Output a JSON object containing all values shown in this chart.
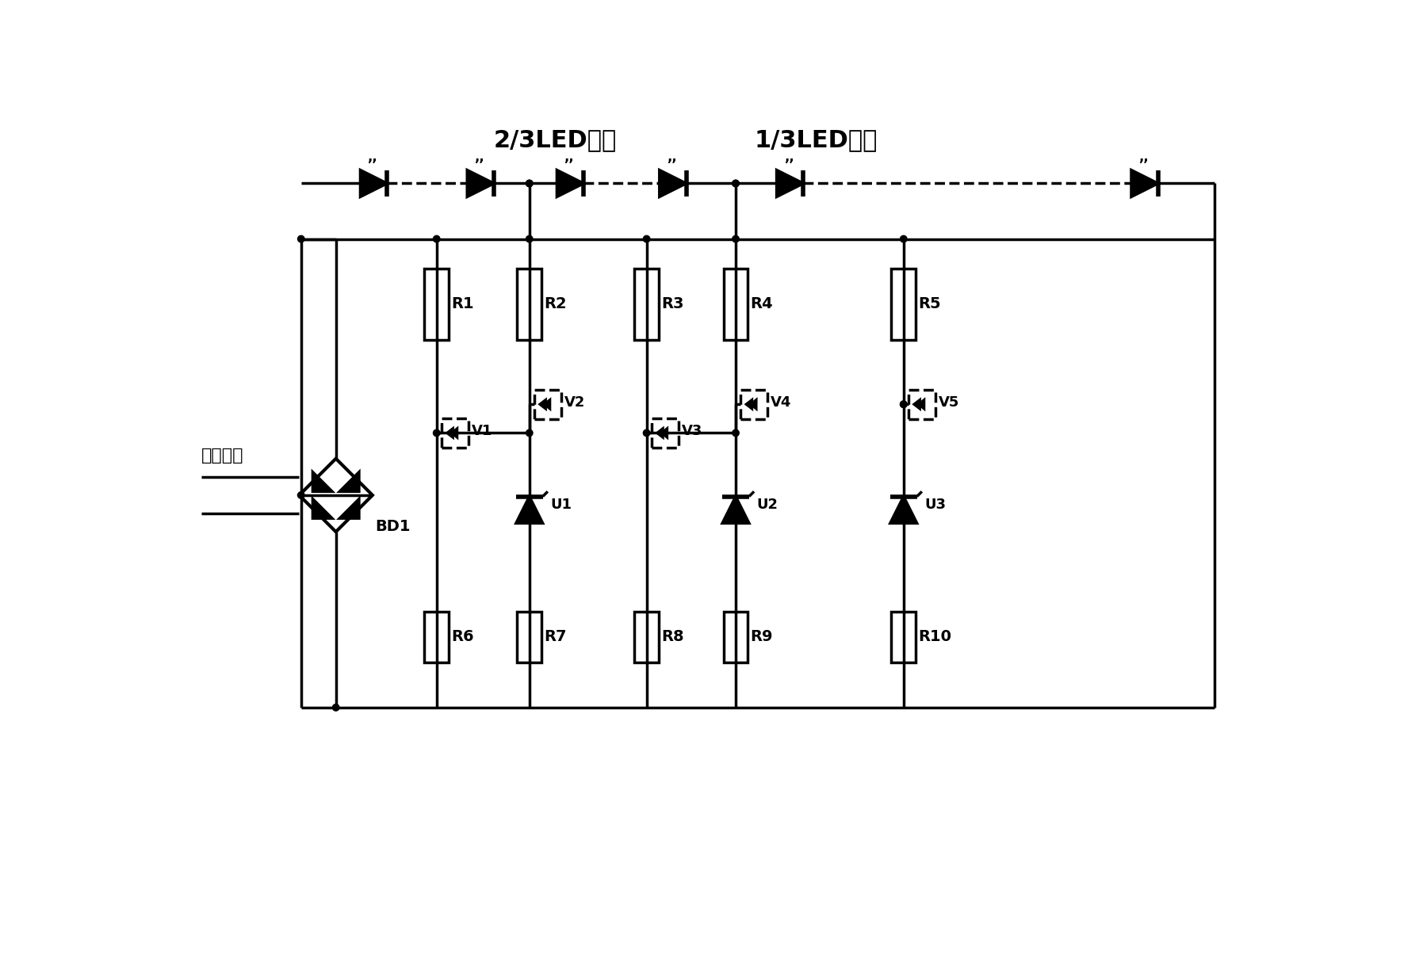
{
  "label_2_3_led": "2/3LED灯串",
  "label_1_3_led": "1/3LED灯串",
  "label_ac_input": "交流输入",
  "label_bd1": "BD1",
  "res_top": [
    "R1",
    "R2",
    "R3",
    "R4",
    "R5"
  ],
  "res_bot": [
    "R6",
    "R7",
    "R8",
    "R9",
    "R10"
  ],
  "transistors": [
    "V1",
    "V2",
    "V3",
    "V4",
    "V5"
  ],
  "u_diodes": [
    "U1",
    "U2",
    "U3"
  ],
  "bg_color": "#ffffff",
  "line_color": "#000000"
}
